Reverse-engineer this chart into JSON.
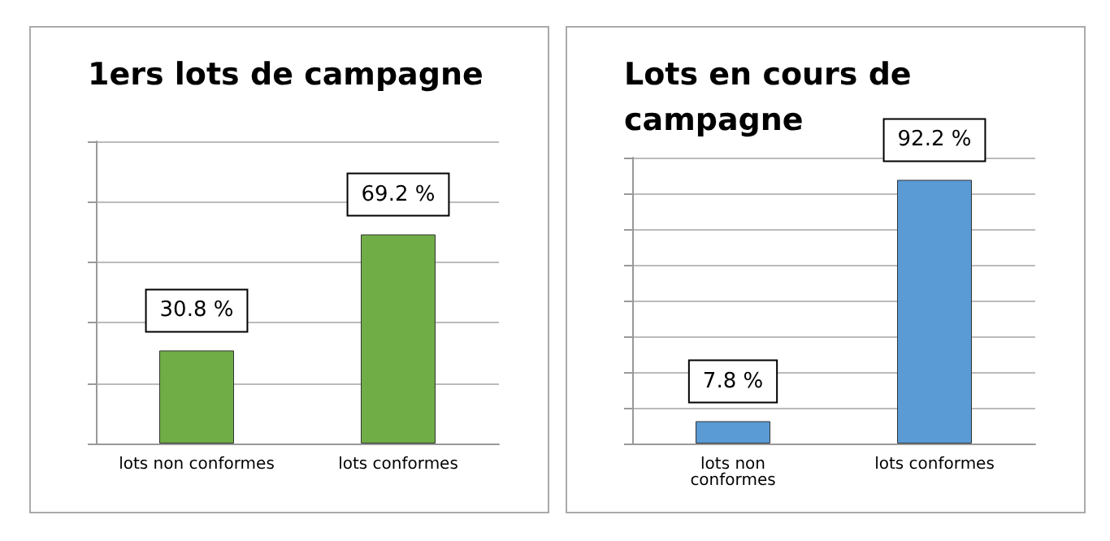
{
  "chart_data": [
    {
      "type": "bar",
      "title": "1ers lots de campagne",
      "categories": [
        "lots non conformes",
        "lots conformes"
      ],
      "values": [
        30.8,
        69.2
      ],
      "value_labels": [
        "30.8 %",
        "69.2 %"
      ],
      "color": "#70ad47",
      "ylim": [
        0,
        100
      ],
      "yticks": [
        {
          "value": 0,
          "label": null
        },
        {
          "value": 20,
          "label": null
        },
        {
          "value": 40,
          "label": null
        },
        {
          "value": 60,
          "label": null
        },
        {
          "value": 80,
          "label": null
        },
        {
          "value": 100,
          "label": null
        }
      ],
      "grid": "y",
      "tick_labels": "x"
    },
    {
      "type": "bar",
      "title": "Lots en cours de\ncampagne",
      "categories": [
        "lots non\nconformes",
        "lots conformes"
      ],
      "values": [
        7.8,
        92.2
      ],
      "value_labels": [
        "7.8 %",
        "92.2 %"
      ],
      "color": "#5b9bd5",
      "ylim": [
        0,
        100
      ],
      "yticks": [
        {
          "value": 0,
          "label": null
        },
        {
          "value": 12.5,
          "label": null
        },
        {
          "value": 25,
          "label": null
        },
        {
          "value": 37.5,
          "label": null
        },
        {
          "value": 50,
          "label": null
        },
        {
          "value": 62.5,
          "label": null
        },
        {
          "value": 75,
          "label": null
        },
        {
          "value": 87.5,
          "label": null
        },
        {
          "value": 100,
          "label": null
        }
      ],
      "grid": "y",
      "tick_labels": "x"
    }
  ]
}
